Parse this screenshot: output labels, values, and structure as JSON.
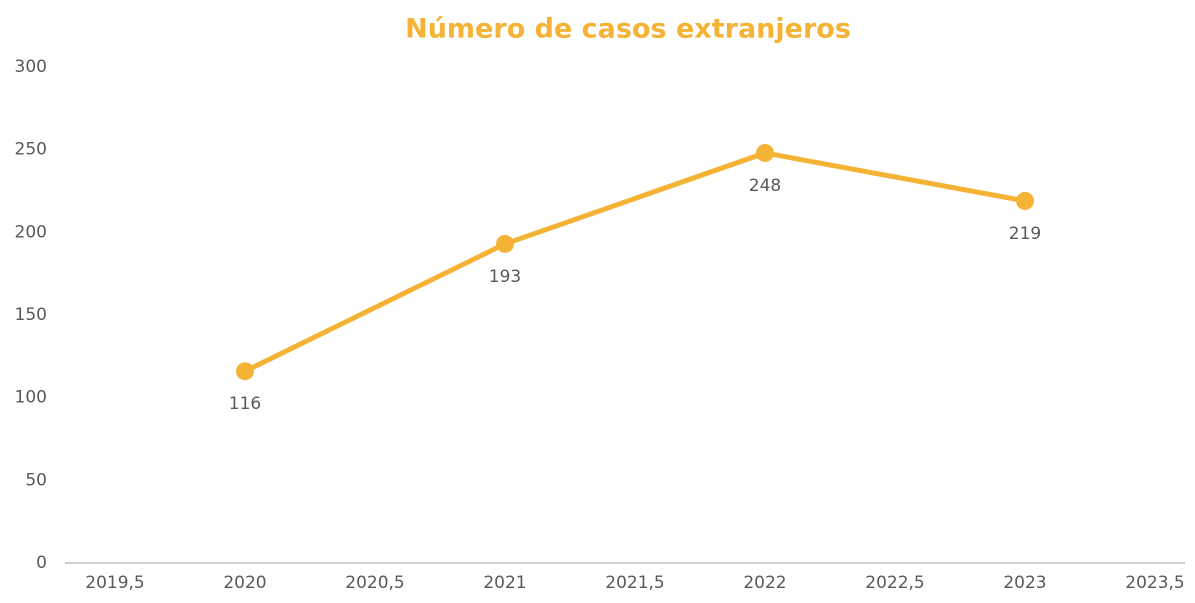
{
  "chart_data": {
    "type": "line",
    "title": "Número de casos extranjeros",
    "x": [
      2020,
      2021,
      2022,
      2023
    ],
    "series": [
      {
        "name": "Número de casos extranjeros",
        "color": "#f5b335",
        "values": [
          116,
          193,
          248,
          219
        ]
      }
    ],
    "xlim": [
      2019.5,
      2023.5
    ],
    "xticks": [
      {
        "value": 2019.5,
        "label": "2019,5"
      },
      2020,
      {
        "value": 2020.5,
        "label": "2020,5"
      },
      2021,
      {
        "value": 2021.5,
        "label": "2021,5"
      },
      2022,
      {
        "value": 2022.5,
        "label": "2022,5"
      },
      2023,
      {
        "value": 2023.5,
        "label": "2023,5"
      }
    ],
    "ylim": [
      0,
      300
    ],
    "yticks": [
      0,
      50,
      100,
      150,
      200,
      250,
      300
    ],
    "grid": false
  }
}
